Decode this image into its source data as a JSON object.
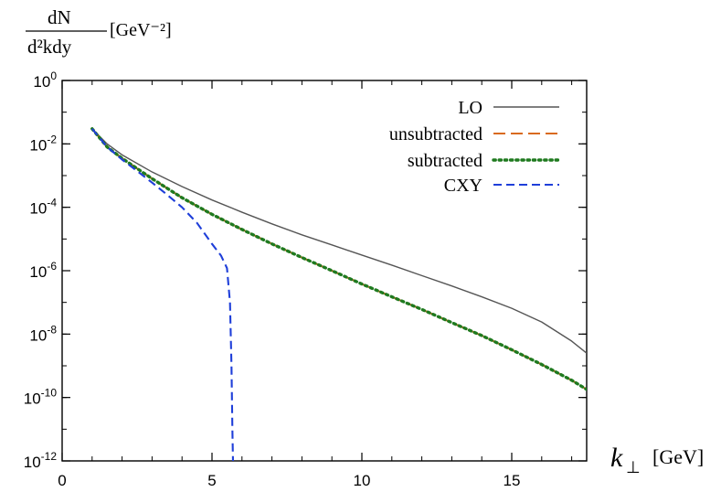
{
  "chart_data": {
    "type": "line",
    "title": "",
    "xlabel": {
      "symbol": "k",
      "subscript": "⊥",
      "unit": "[GeV]"
    },
    "ylabel": {
      "numerator": "dN",
      "denominator": "d²kdy",
      "unit": "[GeV⁻²]"
    },
    "xlim": [
      0,
      17.5
    ],
    "ylim": [
      1e-12,
      1
    ],
    "yscale": "log",
    "x_ticks": [
      {
        "value": 0,
        "label": "0"
      },
      {
        "value": 5,
        "label": "5"
      },
      {
        "value": 10,
        "label": "10"
      },
      {
        "value": 15,
        "label": "15"
      }
    ],
    "y_ticks": [
      {
        "value": 1,
        "base": "10",
        "exp": "0"
      },
      {
        "value": 0.01,
        "base": "10",
        "exp": "-2"
      },
      {
        "value": 0.0001,
        "base": "10",
        "exp": "-4"
      },
      {
        "value": 1e-06,
        "base": "10",
        "exp": "-6"
      },
      {
        "value": 1e-08,
        "base": "10",
        "exp": "-8"
      },
      {
        "value": 1e-10,
        "base": "10",
        "exp": "-10"
      },
      {
        "value": 1e-12,
        "base": "10",
        "exp": "-12"
      }
    ],
    "grid": false,
    "legend_position": "top-right",
    "series": [
      {
        "name": "LO",
        "color": "#555555",
        "style": "solid",
        "x": [
          1,
          1.5,
          2,
          3,
          4,
          5,
          6,
          7,
          8,
          9,
          10,
          11,
          12,
          13,
          14,
          15,
          16,
          17,
          17.5
        ],
        "y": [
          0.03,
          0.01,
          0.0045,
          0.0013,
          0.00045,
          0.00017,
          7e-05,
          3e-05,
          1.35e-05,
          6.5e-06,
          3.1e-06,
          1.5e-06,
          7e-07,
          3.3e-07,
          1.5e-07,
          6.5e-08,
          2.4e-08,
          6e-09,
          2.5e-09
        ]
      },
      {
        "name": "unsubtracted",
        "color": "#d96a1f",
        "style": "dashed",
        "x": [
          1,
          1.5,
          2,
          3,
          4,
          5,
          6,
          7,
          8,
          9,
          10,
          11,
          12,
          13,
          14,
          15,
          16,
          17,
          17.5
        ],
        "y": [
          0.03,
          0.008,
          0.0035,
          0.0008,
          0.0002,
          6e-05,
          2e-05,
          7e-06,
          2.6e-06,
          1e-06,
          3.8e-07,
          1.5e-07,
          6e-08,
          2.3e-08,
          9e-09,
          3.2e-09,
          1.1e-09,
          3.5e-10,
          1.8e-10
        ]
      },
      {
        "name": "subtracted",
        "color": "#1f7a1f",
        "style": "dotted",
        "x": [
          1,
          1.5,
          2,
          3,
          4,
          5,
          6,
          7,
          8,
          9,
          10,
          11,
          12,
          13,
          14,
          15,
          16,
          17,
          17.5
        ],
        "y": [
          0.03,
          0.008,
          0.0035,
          0.0008,
          0.0002,
          6e-05,
          2e-05,
          7e-06,
          2.6e-06,
          1e-06,
          3.8e-07,
          1.5e-07,
          6e-08,
          2.3e-08,
          9e-09,
          3.2e-09,
          1.1e-09,
          3.5e-10,
          1.8e-10
        ]
      },
      {
        "name": "CXY",
        "color": "#1f3fd9",
        "style": "dashed",
        "x": [
          1,
          1.5,
          2,
          2.5,
          3,
          3.5,
          4,
          4.5,
          5,
          5.3,
          5.5,
          5.6,
          5.65,
          5.68,
          5.7
        ],
        "y": [
          0.03,
          0.008,
          0.0032,
          0.0014,
          0.0006,
          0.00025,
          0.0001,
          3.2e-05,
          7e-06,
          3e-06,
          1.2e-06,
          1e-07,
          1e-09,
          1e-11,
          1e-12
        ]
      }
    ]
  }
}
